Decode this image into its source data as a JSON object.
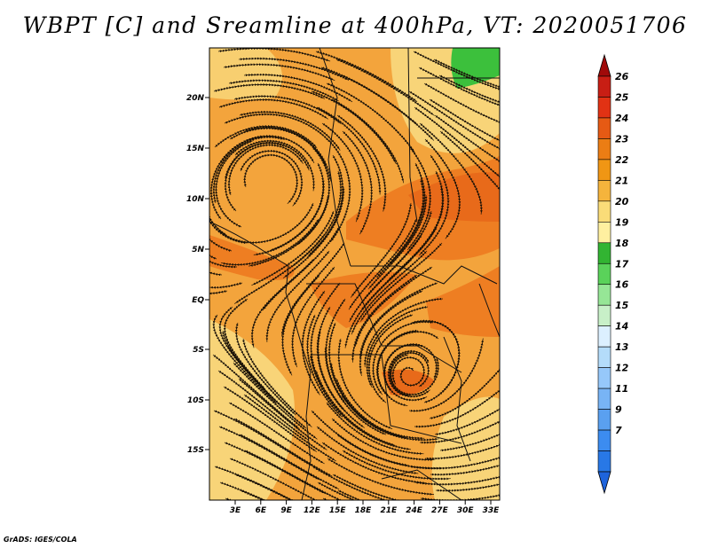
{
  "title": "WBPT [C] and Sreamline at 400hPa, VT: 2020051706",
  "credit": "GrADS: IGES/COLA",
  "map": {
    "lat_labels": [
      "20N",
      "15N",
      "10N",
      "5N",
      "EQ",
      "5S",
      "10S",
      "15S"
    ],
    "lon_labels": [
      "3E",
      "6E",
      "9E",
      "12E",
      "15E",
      "18E",
      "21E",
      "24E",
      "27E",
      "30E",
      "33E"
    ]
  },
  "colorbar": {
    "labels": [
      "7",
      "9",
      "11",
      "12",
      "13",
      "14",
      "15",
      "16",
      "17",
      "18",
      "19",
      "20",
      "21",
      "22",
      "23",
      "24",
      "25",
      "26"
    ],
    "colors": [
      "#1e64dc",
      "#2878e6",
      "#3c8cf0",
      "#5aa0f0",
      "#78b4f5",
      "#96c8fa",
      "#b4dcfa",
      "#dcf0ff",
      "#c8f0c8",
      "#96e696",
      "#5ad25a",
      "#32b432",
      "#fff0a0",
      "#fadc78",
      "#f5b43c",
      "#f09614",
      "#eb7d14",
      "#e65a14",
      "#e13214",
      "#c81e14",
      "#a00a0a"
    ]
  }
}
